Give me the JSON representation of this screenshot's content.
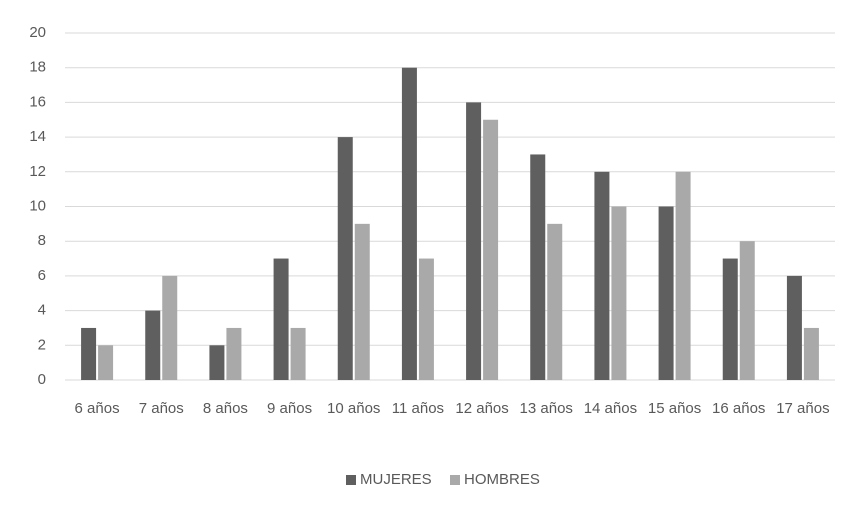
{
  "chart_data": {
    "type": "bar",
    "categories": [
      "6 años",
      "7 años",
      "8 años",
      "9 años",
      "10 años",
      "11 años",
      "12 años",
      "13 años",
      "14 años",
      "15 años",
      "16 años",
      "17 años"
    ],
    "series": [
      {
        "name": "MUJERES",
        "color": "#5f5f5f",
        "values": [
          3,
          4,
          2,
          7,
          14,
          18,
          16,
          13,
          12,
          10,
          7,
          6
        ]
      },
      {
        "name": "HOMBRES",
        "color": "#a9a9a9",
        "values": [
          2,
          6,
          3,
          3,
          9,
          7,
          15,
          9,
          10,
          12,
          8,
          3
        ]
      }
    ],
    "ylim": [
      0,
      20
    ],
    "yticks": [
      0,
      2,
      4,
      6,
      8,
      10,
      12,
      14,
      16,
      18,
      20
    ],
    "grid": true,
    "legend": "bottom"
  }
}
